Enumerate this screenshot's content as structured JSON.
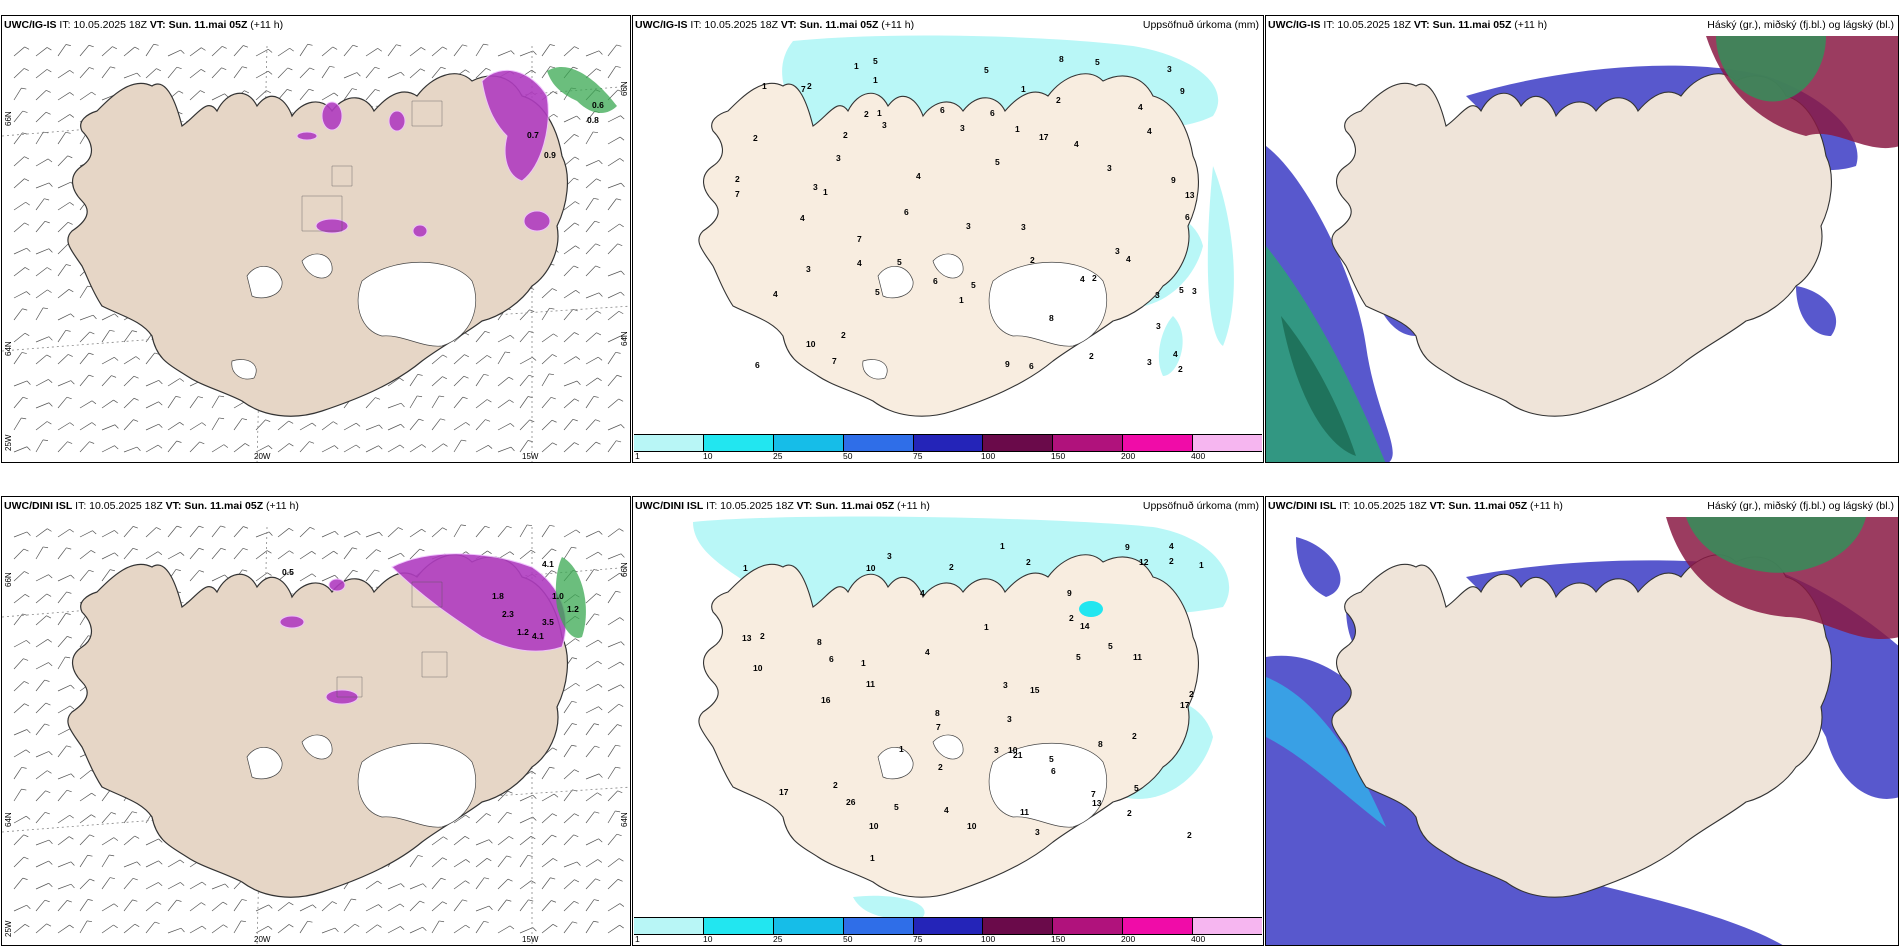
{
  "panels": [
    {
      "id": "r1c1",
      "model": "UWC/IG-IS",
      "it": "IT: 10.05.2025 18Z",
      "vt": "VT: Sun. 11.mai 05Z",
      "lead": "(+11 h)",
      "right": ""
    },
    {
      "id": "r1c2",
      "model": "UWC/IG-IS",
      "it": "IT: 10.05.2025 18Z",
      "vt": "VT: Sun. 11.mai 05Z",
      "lead": "(+11 h)",
      "right": "Uppsöfnuð úrkoma (mm)"
    },
    {
      "id": "r1c3",
      "model": "UWC/IG-IS",
      "it": "IT: 10.05.2025 18Z",
      "vt": "VT: Sun. 11.mai 05Z",
      "lead": "(+11 h)",
      "right": "Háský (gr.), miðský (fj.bl.) og lágský (bl.)"
    },
    {
      "id": "r2c1",
      "model": "UWC/DINI ISL",
      "it": "IT: 10.05.2025 18Z",
      "vt": "VT: Sun. 11.mai 05Z",
      "lead": "(+11 h)",
      "right": ""
    },
    {
      "id": "r2c2",
      "model": "UWC/DINI ISL",
      "it": "IT: 10.05.2025 18Z",
      "vt": "VT: Sun. 11.mai 05Z",
      "lead": "(+11 h)",
      "right": "Uppsöfnuð úrkoma (mm)"
    },
    {
      "id": "r2c3",
      "model": "UWC/DINI ISL",
      "it": "IT: 10.05.2025 18Z",
      "vt": "VT: Sun. 11.mai 05Z",
      "lead": "(+11 h)",
      "right": "Háský (gr.), miðský (fj.bl.) og lágský (bl.)"
    }
  ],
  "axis_labels": {
    "lon_20w": "20W",
    "lon_15w": "15W",
    "lon_25w": "25W",
    "lat_66n": "66N",
    "lat_64n": "64N"
  },
  "precip_legend": {
    "labels": [
      "1",
      "10",
      "25",
      "50",
      "75",
      "100",
      "150",
      "200",
      "400"
    ],
    "colors": [
      "#b8f6f6",
      "#22e6f0",
      "#16bde8",
      "#2f6ee8",
      "#2424b8",
      "#6a0a4a",
      "#b0127c",
      "#f00ca8",
      "#f6b6f0"
    ]
  },
  "colors": {
    "land": "#efe4d9",
    "land_panel1": "#e6d6c6",
    "coast": "#333333",
    "precip_light": "#b9f7f7",
    "cloud_high": "#3a8a5a",
    "cloud_mid": "#8a1a44",
    "cloud_low": "#4040c8",
    "wet_purple": "#b03cc0"
  },
  "rain_values_top": [
    "3",
    "9",
    "17",
    "13",
    "6",
    "5",
    "5",
    "8",
    "3",
    "4",
    "3",
    "4",
    "3",
    "5",
    "4",
    "3",
    "7",
    "2",
    "5",
    "6",
    "4",
    "6",
    "10",
    "3",
    "5",
    "5",
    "6",
    "8",
    "9",
    "9",
    "7",
    "2",
    "4",
    "5",
    "3",
    "7",
    "6",
    "2",
    "4",
    "3",
    "6",
    "2",
    "6",
    "5",
    "3",
    "7",
    "1",
    "4",
    "1",
    "2",
    "3",
    "2",
    "2",
    "2",
    "4",
    "1",
    "3",
    "4",
    "2",
    "3",
    "3",
    "3",
    "4",
    "1",
    "2",
    "2",
    "1",
    "1",
    "1",
    "1"
  ],
  "rain_values_bottom": [
    "3",
    "10",
    "2",
    "8",
    "5",
    "11",
    "17",
    "11",
    "7",
    "26",
    "17",
    "13",
    "8",
    "10",
    "5",
    "9",
    "10",
    "12",
    "8",
    "11",
    "7",
    "21",
    "10",
    "13",
    "15",
    "14",
    "16",
    "6",
    "10",
    "4",
    "6",
    "4",
    "9",
    "5",
    "3",
    "4",
    "1",
    "2",
    "2",
    "5",
    "2",
    "3",
    "1",
    "5",
    "2",
    "2",
    "3",
    "2",
    "3",
    "2",
    "1",
    "1",
    "1",
    "2",
    "1",
    "2",
    "2",
    "4",
    "1"
  ],
  "vorticity_labels": [
    "0.6",
    "0.8",
    "0.7",
    "0.9",
    "1.8",
    "2.3",
    "1.2",
    "4.1",
    "1.0",
    "1.2",
    "3.5",
    "4.1",
    "0.5"
  ]
}
